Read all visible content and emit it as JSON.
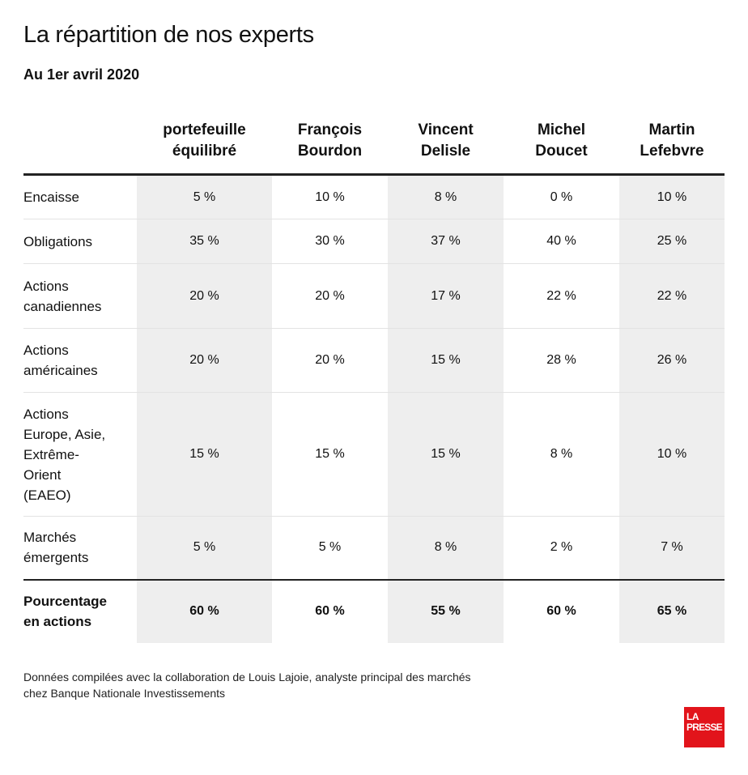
{
  "title": "La répartition de nos experts",
  "subtitle": "Au 1er avril 2020",
  "columns": [
    {
      "line1": "portefeuille",
      "line2": "équilibré"
    },
    {
      "line1": "François",
      "line2": "Bourdon"
    },
    {
      "line1": "Vincent",
      "line2": "Delisle"
    },
    {
      "line1": "Michel",
      "line2": "Doucet"
    },
    {
      "line1": "Martin",
      "line2": "Lefebvre"
    }
  ],
  "rows": [
    {
      "label": [
        "Encaisse"
      ],
      "values": [
        "5 %",
        "10 %",
        "8 %",
        "0 %",
        "10 %"
      ]
    },
    {
      "label": [
        "Obligations"
      ],
      "values": [
        "35 %",
        "30 %",
        "37 %",
        "40 %",
        "25 %"
      ]
    },
    {
      "label": [
        "Actions",
        "canadiennes"
      ],
      "values": [
        "20 %",
        "20 %",
        "17 %",
        "22 %",
        "22 %"
      ]
    },
    {
      "label": [
        "Actions",
        "américaines"
      ],
      "values": [
        "20 %",
        "20 %",
        "15 %",
        "28 %",
        "26 %"
      ]
    },
    {
      "label": [
        "Actions",
        "Europe, Asie,",
        "Extrême-",
        "Orient",
        "(EAEO)"
      ],
      "values": [
        "15 %",
        "15 %",
        "15 %",
        "8 %",
        "10 %"
      ]
    },
    {
      "label": [
        "Marchés",
        "émergents"
      ],
      "values": [
        "5 %",
        "5 %",
        "8 %",
        "2 %",
        "7 %"
      ]
    }
  ],
  "total": {
    "label": [
      "Pourcentage",
      "en actions"
    ],
    "values": [
      "60 %",
      "60 %",
      "55 %",
      "60 %",
      "65 %"
    ]
  },
  "footnote": {
    "line1": "Données compilées avec la collaboration de Louis Lajoie, analyste principal des marchés",
    "line2": "chez Banque Nationale Investissements"
  },
  "logo": {
    "line1": "LA",
    "line2": "PRESSE",
    "color": "#e2141b"
  },
  "colors": {
    "shade": "#eeeeee",
    "rule": "#222222"
  }
}
